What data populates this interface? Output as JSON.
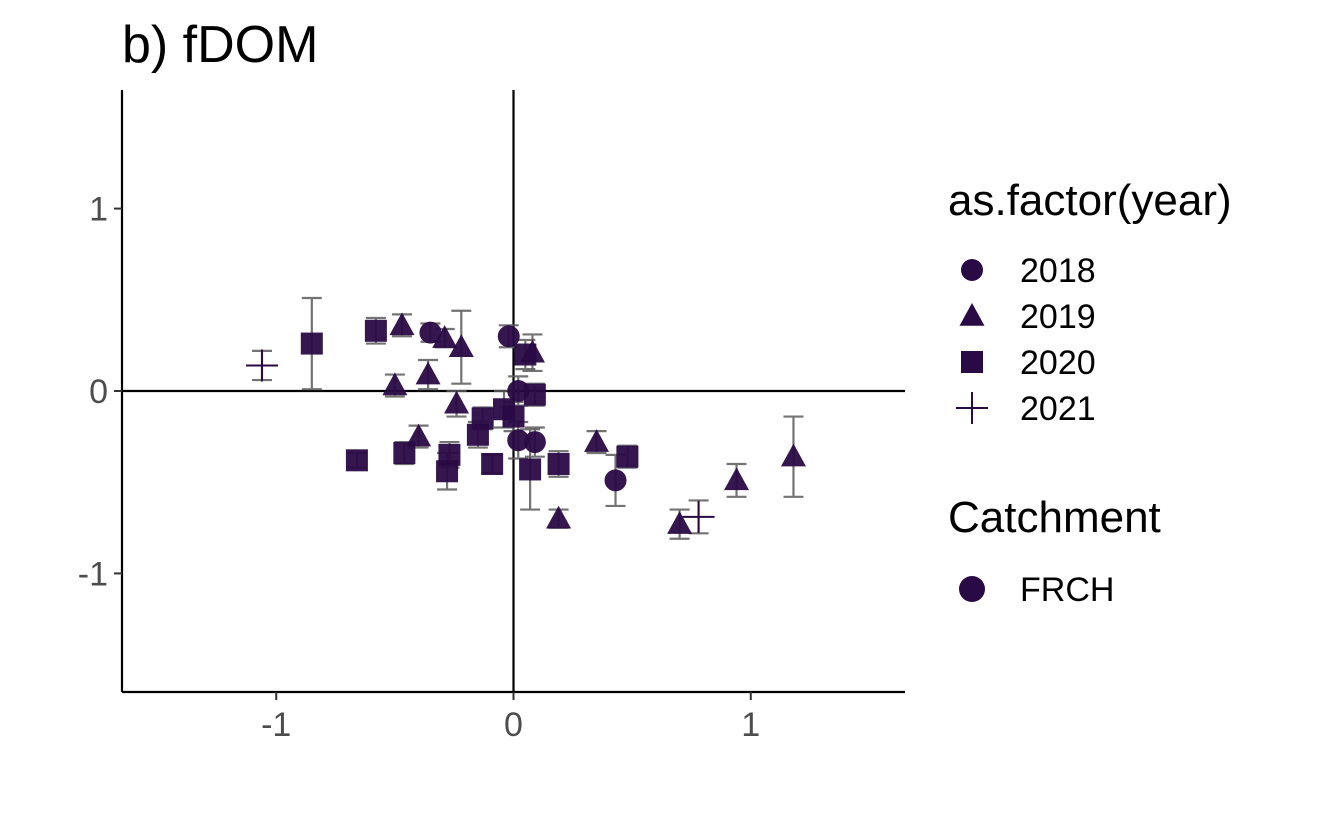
{
  "chart_data": {
    "type": "scatter",
    "title": "b) fDOM",
    "xlabel": "",
    "ylabel": "",
    "xlim": [
      -1.65,
      1.65
    ],
    "ylim": [
      -1.65,
      1.65
    ],
    "xticks": [
      -1,
      0,
      1
    ],
    "yticks": [
      -1,
      0,
      1
    ],
    "x_tick_labels": [
      "-1",
      "0",
      "1"
    ],
    "y_tick_labels": [
      "-1",
      "0",
      "1"
    ],
    "grid": false,
    "reference_lines": {
      "x": 0,
      "y": 0
    },
    "point_color": "#2a0a45",
    "errorbar_color": "#5a5a5a",
    "legend": {
      "position": "right",
      "groups": [
        {
          "title": "as.factor(year)",
          "entries": [
            {
              "label": "2018",
              "shape": "circle"
            },
            {
              "label": "2019",
              "shape": "triangle"
            },
            {
              "label": "2020",
              "shape": "square"
            },
            {
              "label": "2021",
              "shape": "plus"
            }
          ]
        },
        {
          "title": "Catchment",
          "entries": [
            {
              "label": "FRCH",
              "color": "#2a0a45"
            }
          ]
        }
      ]
    },
    "series": [
      {
        "name": "2018",
        "shape": "circle",
        "points": [
          {
            "x": -0.35,
            "y": 0.32,
            "err": 0.05
          },
          {
            "x": -0.02,
            "y": 0.3,
            "err": 0.06
          },
          {
            "x": 0.02,
            "y": 0.0,
            "err": 0.08
          },
          {
            "x": 0.02,
            "y": -0.27,
            "err": 0.1
          },
          {
            "x": 0.09,
            "y": -0.28,
            "err": 0.08
          },
          {
            "x": 0.43,
            "y": -0.49,
            "err": 0.14
          }
        ]
      },
      {
        "name": "2019",
        "shape": "triangle",
        "points": [
          {
            "x": -0.47,
            "y": 0.36,
            "err": 0.06
          },
          {
            "x": -0.29,
            "y": 0.29,
            "err": 0.05
          },
          {
            "x": -0.22,
            "y": 0.24,
            "err": 0.2
          },
          {
            "x": -0.5,
            "y": 0.03,
            "err": 0.06
          },
          {
            "x": -0.36,
            "y": 0.09,
            "err": 0.08
          },
          {
            "x": -0.24,
            "y": -0.07,
            "err": 0.07
          },
          {
            "x": -0.4,
            "y": -0.25,
            "err": 0.06
          },
          {
            "x": 0.08,
            "y": 0.21,
            "err": 0.1
          },
          {
            "x": 0.35,
            "y": -0.28,
            "err": 0.06
          },
          {
            "x": 0.19,
            "y": -0.7,
            "err": 0.05
          },
          {
            "x": 0.7,
            "y": -0.73,
            "err": 0.08
          },
          {
            "x": 0.94,
            "y": -0.49,
            "err": 0.09
          },
          {
            "x": 1.18,
            "y": -0.36,
            "err": 0.22
          }
        ]
      },
      {
        "name": "2020",
        "shape": "square",
        "points": [
          {
            "x": -0.85,
            "y": 0.26,
            "err": 0.25
          },
          {
            "x": -0.58,
            "y": 0.33,
            "err": 0.07
          },
          {
            "x": -0.66,
            "y": -0.38,
            "err": 0.04
          },
          {
            "x": -0.46,
            "y": -0.34,
            "err": 0.06
          },
          {
            "x": -0.27,
            "y": -0.35,
            "err": 0.07
          },
          {
            "x": -0.28,
            "y": -0.44,
            "err": 0.1
          },
          {
            "x": -0.15,
            "y": -0.24,
            "err": 0.07
          },
          {
            "x": -0.13,
            "y": -0.15,
            "err": 0.06
          },
          {
            "x": -0.09,
            "y": -0.4,
            "err": 0.05
          },
          {
            "x": -0.04,
            "y": -0.1,
            "err": 0.1
          },
          {
            "x": 0.0,
            "y": -0.14,
            "err": 0.08
          },
          {
            "x": 0.05,
            "y": 0.2,
            "err": 0.08
          },
          {
            "x": 0.09,
            "y": -0.02,
            "err": 0.06
          },
          {
            "x": 0.07,
            "y": -0.43,
            "err": 0.22
          },
          {
            "x": 0.19,
            "y": -0.4,
            "err": 0.07
          },
          {
            "x": 0.48,
            "y": -0.36,
            "err": 0.06
          }
        ]
      },
      {
        "name": "2021",
        "shape": "plus",
        "points": [
          {
            "x": -1.06,
            "y": 0.14,
            "err": 0.08
          },
          {
            "x": 0.78,
            "y": -0.69,
            "err": 0.09
          }
        ]
      }
    ]
  }
}
